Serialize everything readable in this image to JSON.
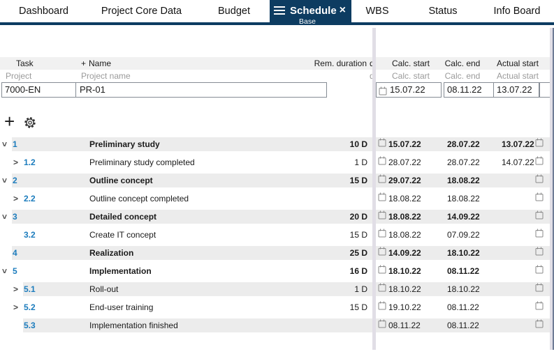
{
  "tabs": {
    "items": [
      {
        "label": "Dashboard"
      },
      {
        "label": "Project Core Data"
      },
      {
        "label": "Budget"
      },
      {
        "label": "Schedule",
        "sublabel": "Base",
        "active": true
      },
      {
        "label": "WBS"
      },
      {
        "label": "Status"
      },
      {
        "label": "Info Board"
      }
    ],
    "close_glyph": "×"
  },
  "colors": {
    "active_tab_navy": "#0d3c61",
    "task_number_blue": "#1c7cbd",
    "row_shade_gray": "#ececec",
    "splitter_lavender": "#e1dee6",
    "pane_edge_slate": "#6e7b95"
  },
  "grid": {
    "headers": {
      "task": "Task",
      "add_column_glyph": "+",
      "name": "Name",
      "rem_duration": "Rem. duration",
      "clipped_col": "d",
      "calc_start": "Calc. start",
      "calc_end": "Calc. end",
      "actual_start": "Actual start"
    },
    "filter_labels": {
      "project": "Project",
      "project_name": "Project name",
      "clipped_col": "d",
      "calc_start": "Calc. start",
      "calc_end": "Calc. end",
      "actual_start": "Actual start"
    },
    "filters": {
      "project_value": "7000-EN",
      "project_name_value": "PR-01",
      "calc_start_value": "15.07.22",
      "calc_end_value": "08.11.22",
      "actual_start_value": "13.07.22"
    },
    "rows": [
      {
        "num": "1",
        "level": 1,
        "expander": "down",
        "name": "Preliminary study",
        "rem_duration": "10 D",
        "calc_start": "15.07.22",
        "calc_end": "28.07.22",
        "actual_start": "13.07.22"
      },
      {
        "num": "1.2",
        "level": 2,
        "expander": "right",
        "name": "Preliminary study completed",
        "rem_duration": "1 D",
        "calc_start": "28.07.22",
        "calc_end": "28.07.22",
        "actual_start": "14.07.22"
      },
      {
        "num": "2",
        "level": 1,
        "expander": "down",
        "name": "Outline concept",
        "rem_duration": "15 D",
        "calc_start": "29.07.22",
        "calc_end": "18.08.22",
        "actual_start": ""
      },
      {
        "num": "2.2",
        "level": 2,
        "expander": "right",
        "name": "Outline concept completed",
        "rem_duration": "",
        "calc_start": "18.08.22",
        "calc_end": "18.08.22",
        "actual_start": ""
      },
      {
        "num": "3",
        "level": 1,
        "expander": "down",
        "name": "Detailed concept",
        "rem_duration": "20 D",
        "calc_start": "18.08.22",
        "calc_end": "14.09.22",
        "actual_start": ""
      },
      {
        "num": "3.2",
        "level": 2,
        "expander": "none",
        "name": "Create IT concept",
        "rem_duration": "15 D",
        "calc_start": "18.08.22",
        "calc_end": "07.09.22",
        "actual_start": ""
      },
      {
        "num": "4",
        "level": 1,
        "expander": "none",
        "name": "Realization",
        "rem_duration": "25 D",
        "calc_start": "14.09.22",
        "calc_end": "18.10.22",
        "actual_start": ""
      },
      {
        "num": "5",
        "level": 1,
        "expander": "down",
        "name": "Implementation",
        "rem_duration": "16 D",
        "calc_start": "18.10.22",
        "calc_end": "08.11.22",
        "actual_start": ""
      },
      {
        "num": "5.1",
        "level": 2,
        "expander": "right",
        "name": "Roll-out",
        "rem_duration": "1 D",
        "calc_start": "18.10.22",
        "calc_end": "18.10.22",
        "actual_start": ""
      },
      {
        "num": "5.2",
        "level": 2,
        "expander": "right",
        "name": "End-user training",
        "rem_duration": "15 D",
        "calc_start": "19.10.22",
        "calc_end": "08.11.22",
        "actual_start": ""
      },
      {
        "num": "5.3",
        "level": 2,
        "expander": "none",
        "name": "Implementation finished",
        "rem_duration": "",
        "calc_start": "08.11.22",
        "calc_end": "08.11.22",
        "actual_start": ""
      }
    ]
  },
  "toolbar": {
    "add_glyph": "+"
  }
}
